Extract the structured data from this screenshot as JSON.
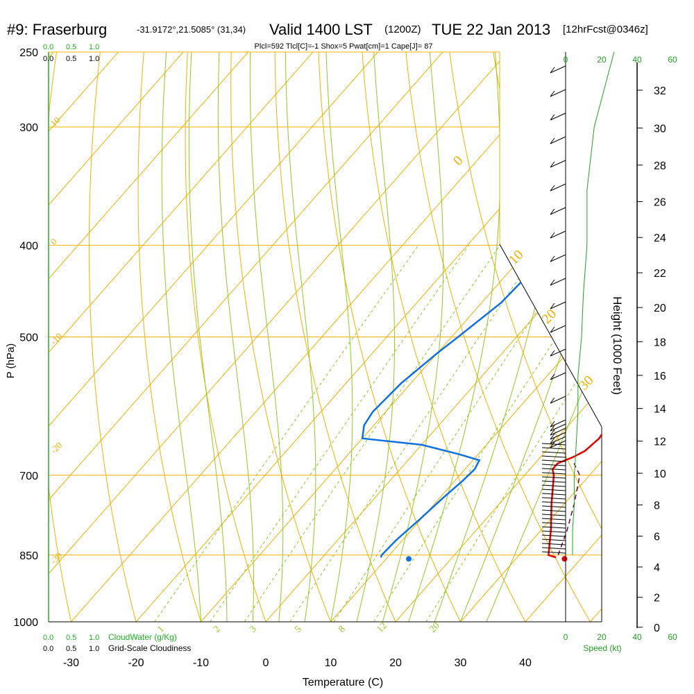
{
  "header": {
    "station": "#9: Fraserburg",
    "coords": "-31.9172°,21.5085° (31,34)",
    "valid": "Valid 1400 LST",
    "z": "(1200Z)",
    "date": "TUE 22 Jan 2013",
    "fcst": "[12hrFcst@0346z]",
    "params": "Plcl=592 Tlcl[C]=-1 Shox=5 Pwat[cm]=1 Cape[J]= 87"
  },
  "colors": {
    "isotherm": "#f0b000",
    "dry_adiabat": "#f0b000",
    "moist_adiabat": "#90c820",
    "mixing_ratio": "#90c820",
    "temperature": "#e00000",
    "dewpoint": "#1070e0",
    "parcel": "#700040",
    "speed": "#20a020",
    "cloud_scale": "#20b020",
    "params_text": "#a00050"
  },
  "left_scales": {
    "cloudwater_ticks": [
      "0.0",
      "0.5",
      "1.0"
    ],
    "cloudiness_ticks": [
      "0.0",
      "0.5",
      "1.0"
    ],
    "cloudwater_label": "CloudWater (g/Kg)",
    "cloudiness_label": "Grid-Scale Cloudiness"
  },
  "speed_axis": {
    "ticks": [
      "0",
      "20",
      "40",
      "60"
    ],
    "label": "Speed (kt)"
  },
  "chart_data": {
    "type": "line",
    "title": "#9: Fraserburg Valid 1400 LST (1200Z) TUE 22 Jan 2013",
    "xlabel": "Temperature (C)",
    "ylabel": "P (hPa)",
    "y2label": "Height (1000 Feet)",
    "x_ticks": [
      -30,
      -20,
      -10,
      0,
      10,
      20,
      30,
      40
    ],
    "p_ticks": [
      250,
      300,
      400,
      500,
      700,
      850,
      1000
    ],
    "height_ticks": [
      0,
      2,
      4,
      6,
      8,
      10,
      12,
      14,
      16,
      18,
      20,
      22,
      24,
      26,
      28,
      30,
      32
    ],
    "isotherm_labels": [
      {
        "text": "10",
        "p": 300,
        "side": "left"
      },
      {
        "text": "0",
        "p": 400,
        "side": "left"
      },
      {
        "text": "-10",
        "p": 510,
        "side": "left"
      },
      {
        "text": "-20",
        "p": 665,
        "side": "left"
      },
      {
        "text": "-30",
        "p": 870,
        "side": "left"
      },
      {
        "text": "0",
        "p": 330,
        "side": "right"
      },
      {
        "text": "10",
        "p": 420,
        "side": "right"
      },
      {
        "text": "20",
        "p": 485,
        "side": "right"
      },
      {
        "text": "30",
        "p": 570,
        "side": "right"
      }
    ],
    "mixing_ratio_labels": [
      "1",
      "2",
      "3",
      "5",
      "8",
      "12",
      "20"
    ],
    "series": [
      {
        "name": "Temperature",
        "pressure": [
          855,
          850,
          800,
          750,
          700,
          690,
          680,
          670,
          660,
          640,
          620,
          600,
          560,
          520,
          480,
          450,
          420,
          380,
          350,
          320,
          300,
          280,
          260,
          250
        ],
        "temp_c": [
          36.0,
          34.5,
          31.5,
          28.0,
          24.5,
          23.5,
          23.5,
          25.0,
          26.0,
          26.5,
          26.0,
          24.5,
          21.0,
          17.5,
          14.0,
          11.5,
          10.0,
          9.0,
          8.0,
          5.5,
          3.5,
          0.5,
          -3.0,
          -4.0
        ]
      },
      {
        "name": "Dewpoint",
        "pressure": [
          855,
          850,
          820,
          780,
          740,
          710,
          690,
          675,
          665,
          650,
          640,
          620,
          600,
          560,
          520,
          500,
          460,
          420,
          400,
          380,
          350,
          320,
          300,
          280,
          250
        ],
        "dewp_c": [
          9.0,
          8.8,
          9.0,
          9.8,
          10.5,
          11.2,
          11.5,
          11.0,
          7.0,
          0.0,
          -10.0,
          -11.5,
          -12.0,
          -11.5,
          -10.0,
          -9.0,
          -7.0,
          -6.5,
          -7.0,
          -7.5,
          -8.5,
          -9.5,
          -10.5,
          -11.5,
          -13.5
        ]
      },
      {
        "name": "Parcel",
        "pressure": [
          850,
          800,
          750,
          700,
          680
        ],
        "temp_c": [
          36.0,
          34.0,
          31.5,
          28.5,
          26.0
        ]
      }
    ],
    "surface_points": {
      "temperature": {
        "p": 858,
        "t": 37.5
      },
      "dewpoint": {
        "p": 858,
        "t": 13.5
      }
    },
    "wind_speed_kt": {
      "pressure": [
        850,
        800,
        750,
        700,
        650,
        600,
        550,
        500,
        450,
        400,
        350,
        300,
        250
      ],
      "speed": [
        0,
        0,
        1,
        1,
        2,
        3,
        3,
        5,
        6,
        8,
        8,
        12,
        23
      ]
    }
  }
}
